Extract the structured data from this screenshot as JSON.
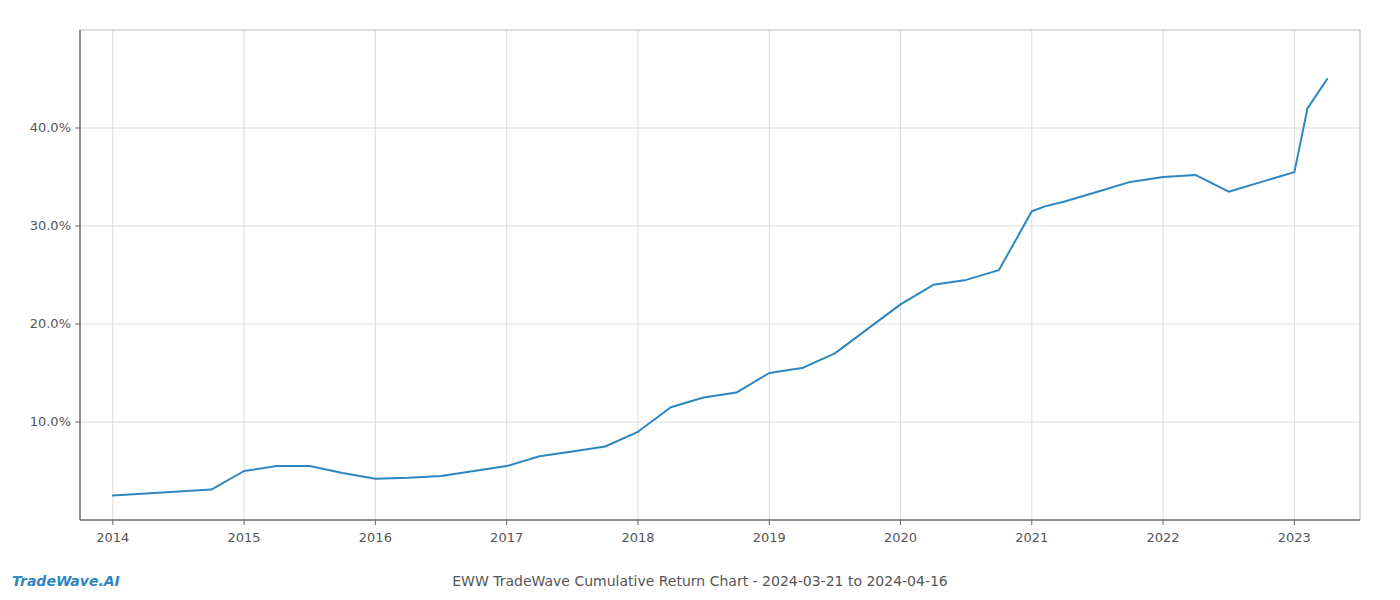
{
  "chart_data": {
    "type": "line",
    "title": "EWW TradeWave Cumulative Return Chart - 2024-03-21 to 2024-04-16",
    "annotations": [
      "TradeWave.AI"
    ],
    "color": "#2e86c1",
    "x": [
      2014.0,
      2014.25,
      2014.5,
      2014.75,
      2015.0,
      2015.25,
      2015.5,
      2015.75,
      2016.0,
      2016.25,
      2016.5,
      2016.75,
      2017.0,
      2017.25,
      2017.5,
      2017.75,
      2018.0,
      2018.25,
      2018.5,
      2018.75,
      2019.0,
      2019.1,
      2019.25,
      2019.5,
      2019.75,
      2020.0,
      2020.25,
      2020.5,
      2020.75,
      2021.0,
      2021.1,
      2021.25,
      2021.5,
      2021.75,
      2022.0,
      2022.25,
      2022.5,
      2022.75,
      2023.0,
      2023.1,
      2023.25
    ],
    "values": [
      2.5,
      2.7,
      2.9,
      3.1,
      5.0,
      5.5,
      5.5,
      4.8,
      4.2,
      4.3,
      4.5,
      5.0,
      5.5,
      6.5,
      7.0,
      7.5,
      9.0,
      11.5,
      12.5,
      13.0,
      15.0,
      15.2,
      15.5,
      17.0,
      19.5,
      22.0,
      24.0,
      24.5,
      25.5,
      31.5,
      32.0,
      32.5,
      33.5,
      34.5,
      35.0,
      35.2,
      33.5,
      34.5,
      35.5,
      42.0,
      45.0
    ],
    "xlim": [
      2013.75,
      2023.5
    ],
    "xticks": [
      2014,
      2015,
      2016,
      2017,
      2018,
      2019,
      2020,
      2021,
      2022,
      2023
    ],
    "ylim": [
      0,
      50
    ],
    "yticks": [
      {
        "value": 10.0,
        "label": "10.0%"
      },
      {
        "value": 20.0,
        "label": "20.0%"
      },
      {
        "value": 30.0,
        "label": "30.0%"
      },
      {
        "value": 40.0,
        "label": "40.0%"
      }
    ],
    "grid": true
  }
}
